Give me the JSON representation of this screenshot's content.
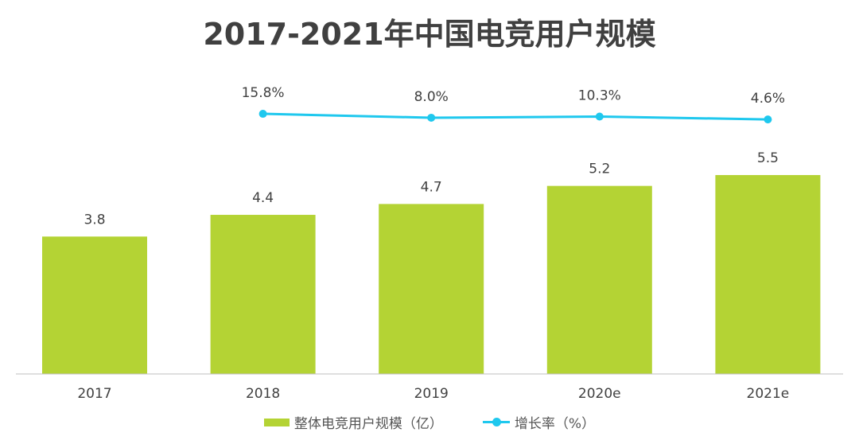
{
  "chart_data": {
    "type": "bar+line",
    "title": "2017-2021年中国电竞用户规模",
    "categories": [
      "2017",
      "2018",
      "2019",
      "2020e",
      "2021e"
    ],
    "series": [
      {
        "name": "整体电竞用户规模（亿）",
        "type": "bar",
        "values": [
          3.8,
          4.4,
          4.7,
          5.2,
          5.5
        ],
        "labels": [
          "3.8",
          "4.4",
          "4.7",
          "5.2",
          "5.5"
        ],
        "color": "#b4d334"
      },
      {
        "name": "增长率（%）",
        "type": "line",
        "values": [
          null,
          15.8,
          8.0,
          10.3,
          4.6
        ],
        "labels": [
          "",
          "15.8%",
          "8.0%",
          "10.3%",
          "4.6%"
        ],
        "color": "#1fc8ee"
      }
    ],
    "xlabel": "",
    "ylabel": "",
    "grid": false,
    "legend": "bottom"
  }
}
